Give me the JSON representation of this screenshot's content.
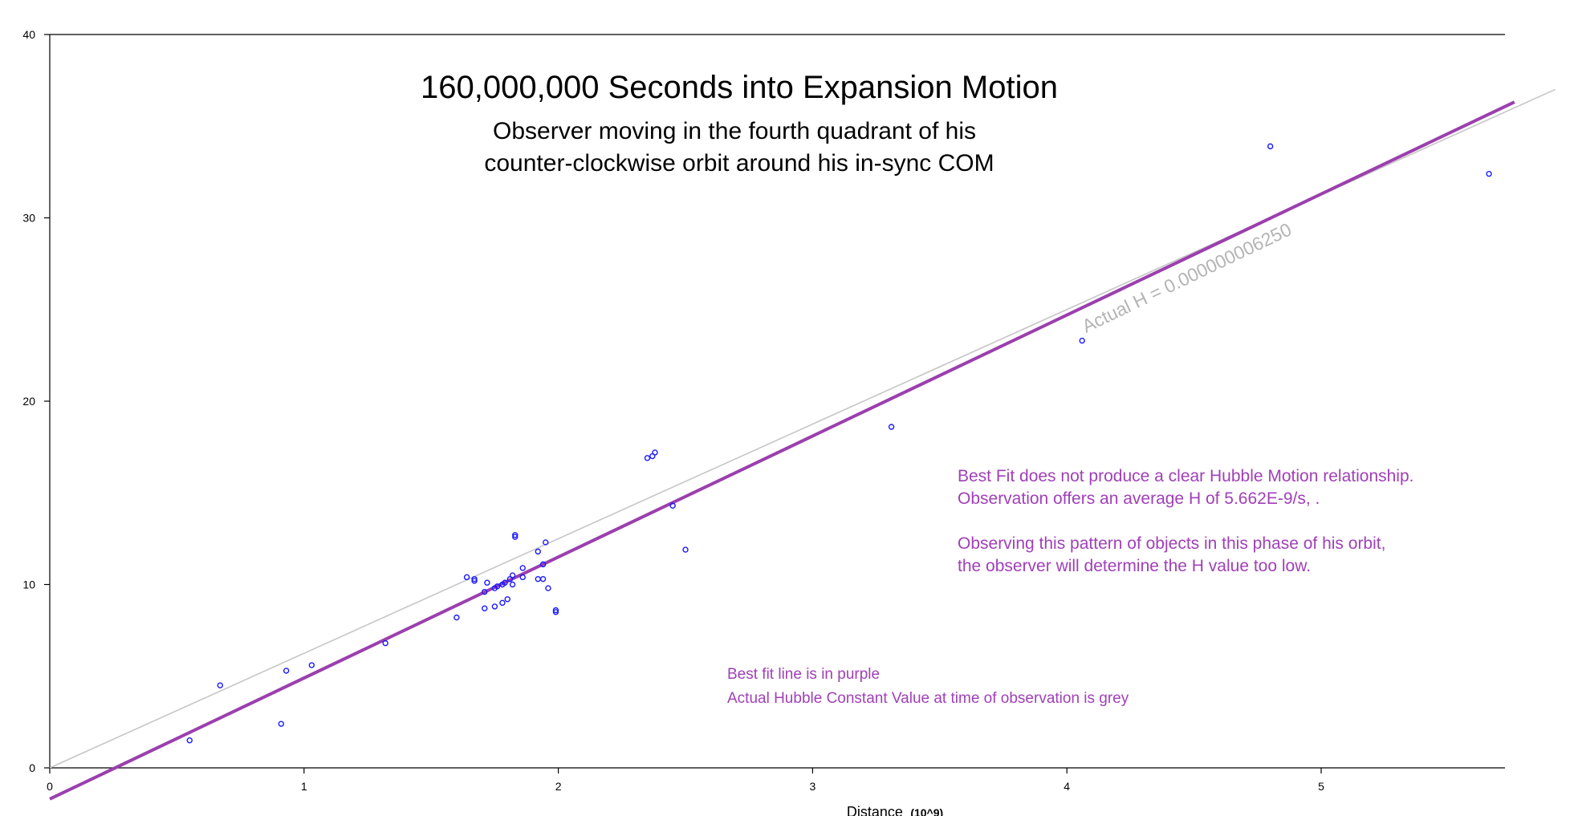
{
  "colors": {
    "points": "#1a1aff",
    "best_fit": "#9b3fae",
    "actual_line": "#c6c6c6",
    "actual_label": "#b4b4b4",
    "annotation": "#a040b8",
    "axes": "#000000"
  },
  "title": "160,000,000 Seconds into Expansion Motion",
  "subtitle_lines": [
    "Observer moving in the fourth quadrant of his",
    "counter-clockwise orbit around his in-sync COM"
  ],
  "annotations": {
    "best_fit_note": [
      "Best Fit does not produce a clear Hubble Motion relationship.",
      "Observation offers an average H of  5.662E-9/s, .",
      "Observing this pattern of objects in this phase of his orbit,",
      "the observer will determine the H value too low."
    ],
    "legend_lines": [
      "Best fit line is in purple",
      "Actual Hubble Constant Value at time of observation is grey"
    ],
    "actual_h_label": "Actual H = 0.000000006250"
  },
  "chart_data": {
    "type": "scatter",
    "xlabel": "Distance",
    "xlabel_unit": "(10^9)",
    "ylabel": "",
    "xlim": [
      0,
      5.72
    ],
    "ylim": [
      0,
      40
    ],
    "x_ticks": [
      0,
      1,
      2,
      3,
      4,
      5
    ],
    "y_ticks": [
      0,
      10,
      20,
      30,
      40
    ],
    "grid": false,
    "points": [
      {
        "x": 0.55,
        "y": 1.5
      },
      {
        "x": 0.67,
        "y": 4.5
      },
      {
        "x": 0.91,
        "y": 2.4
      },
      {
        "x": 0.93,
        "y": 5.3
      },
      {
        "x": 1.03,
        "y": 5.6
      },
      {
        "x": 1.32,
        "y": 6.8
      },
      {
        "x": 1.6,
        "y": 8.2
      },
      {
        "x": 1.64,
        "y": 10.4
      },
      {
        "x": 1.67,
        "y": 10.2
      },
      {
        "x": 1.67,
        "y": 10.3
      },
      {
        "x": 1.71,
        "y": 9.6
      },
      {
        "x": 1.71,
        "y": 8.7
      },
      {
        "x": 1.72,
        "y": 10.1
      },
      {
        "x": 1.75,
        "y": 9.8
      },
      {
        "x": 1.75,
        "y": 8.8
      },
      {
        "x": 1.76,
        "y": 9.9
      },
      {
        "x": 1.78,
        "y": 10.0
      },
      {
        "x": 1.78,
        "y": 9.0
      },
      {
        "x": 1.79,
        "y": 10.1
      },
      {
        "x": 1.8,
        "y": 9.2
      },
      {
        "x": 1.81,
        "y": 10.3
      },
      {
        "x": 1.82,
        "y": 10.5
      },
      {
        "x": 1.82,
        "y": 10.0
      },
      {
        "x": 1.83,
        "y": 12.6
      },
      {
        "x": 1.83,
        "y": 12.7
      },
      {
        "x": 1.86,
        "y": 10.9
      },
      {
        "x": 1.86,
        "y": 10.4
      },
      {
        "x": 1.92,
        "y": 11.8
      },
      {
        "x": 1.92,
        "y": 10.3
      },
      {
        "x": 1.94,
        "y": 10.3
      },
      {
        "x": 1.94,
        "y": 11.1
      },
      {
        "x": 1.95,
        "y": 12.3
      },
      {
        "x": 1.96,
        "y": 9.8
      },
      {
        "x": 1.99,
        "y": 8.5
      },
      {
        "x": 1.99,
        "y": 8.6
      },
      {
        "x": 2.35,
        "y": 16.9
      },
      {
        "x": 2.37,
        "y": 17.0
      },
      {
        "x": 2.38,
        "y": 17.2
      },
      {
        "x": 2.45,
        "y": 14.3
      },
      {
        "x": 2.5,
        "y": 11.9
      },
      {
        "x": 3.31,
        "y": 18.6
      },
      {
        "x": 4.06,
        "y": 23.3
      },
      {
        "x": 4.8,
        "y": 33.9
      },
      {
        "x": 5.66,
        "y": 32.4
      }
    ],
    "series": [
      {
        "slope": 6.6,
        "intercept": -1.7,
        "x_range": [
          0,
          5.76
        ]
      },
      {
        "slope": 6.25,
        "intercept": 0,
        "x_range": [
          0,
          5.92
        ]
      }
    ]
  }
}
